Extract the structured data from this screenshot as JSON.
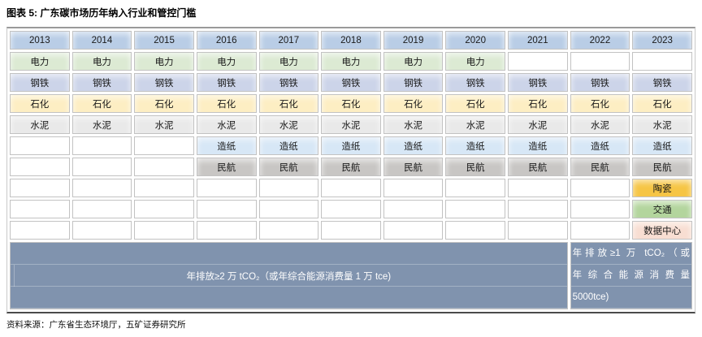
{
  "title": "图表 5: 广东碳市场历年纳入行业和管控门槛",
  "source": "资料来源：广东省生态环境厅，五矿证券研究所",
  "colors": {
    "header_bg": "#b9cde6",
    "threshold_bg": "#8093ae",
    "threshold_text": "#ffffff",
    "empty_bg": "#ffffff"
  },
  "table": {
    "years": [
      "2013",
      "2014",
      "2015",
      "2016",
      "2017",
      "2018",
      "2019",
      "2020",
      "2021",
      "2022",
      "2023"
    ],
    "rows": [
      {
        "id": "dianli",
        "industry": "电力",
        "color": "#dcead3",
        "start": 2013,
        "end": 2020
      },
      {
        "id": "gangtie",
        "industry": "钢铁",
        "color": "#ccd4e9",
        "start": 2013,
        "end": 2023
      },
      {
        "id": "shihua",
        "industry": "石化",
        "color": "#fdeec3",
        "start": 2013,
        "end": 2023
      },
      {
        "id": "shuini",
        "industry": "水泥",
        "color": "#e9e9e9",
        "start": 2013,
        "end": 2023
      },
      {
        "id": "zaozhi",
        "industry": "造纸",
        "color": "#d7e7f6",
        "start": 2016,
        "end": 2023
      },
      {
        "id": "minhang",
        "industry": "民航",
        "color": "#c8c6c4",
        "start": 2016,
        "end": 2023
      },
      {
        "id": "taoci",
        "industry": "陶瓷",
        "color": "#f6c545",
        "start": 2023,
        "end": 2023
      },
      {
        "id": "jiaotong",
        "industry": "交通",
        "color": "#b3d59d",
        "start": 2023,
        "end": 2023
      },
      {
        "id": "shujuzhongxin",
        "industry": "数据中心",
        "color": "#f8ded2",
        "start": 2023,
        "end": 2023
      }
    ],
    "thresholds": [
      {
        "label": "年排放≥2 万 tCO₂（或年综合能源消费量 1 万 tce)"
      },
      {
        "label": "年排放≥1 万 tCO₂（或年综合能源消费量 5000tce)",
        "lines": [
          "年排放≥1 万 tCO₂（或",
          "年综合能源消费量",
          "5000tce)"
        ]
      }
    ]
  }
}
